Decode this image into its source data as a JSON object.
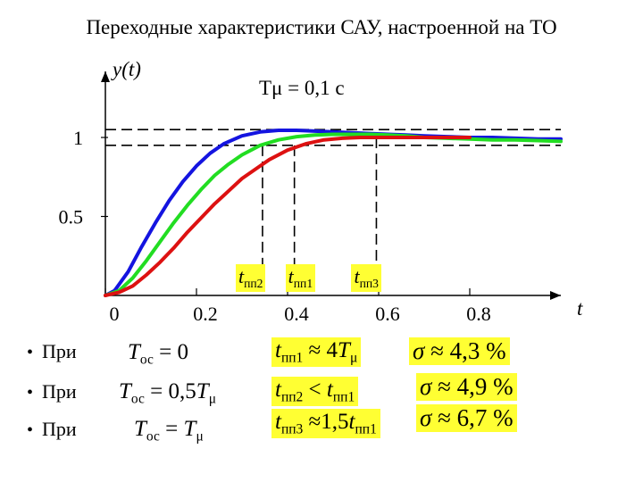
{
  "title": "Переходные характеристики САУ, настроенной на ТО",
  "chart_data": {
    "type": "line",
    "ylabel": "y(t)",
    "xlabel": "t",
    "xlim": [
      0,
      1.0
    ],
    "ylim": [
      0,
      1.2
    ],
    "x_ticks": [
      0,
      0.2,
      0.4,
      0.6,
      0.8
    ],
    "x_tick_labels": [
      "0",
      "0.2",
      "0.4",
      "0.6",
      "0.8"
    ],
    "y_ticks": [
      0.5,
      1
    ],
    "y_tick_labels": [
      "0.5",
      "1"
    ],
    "grid": false,
    "annotation": "Tμ = 0,1 c",
    "band": [
      0.95,
      1.05
    ],
    "series": [
      {
        "color": "#1414e0",
        "x": [
          0,
          0.02,
          0.05,
          0.08,
          0.11,
          0.14,
          0.17,
          0.2,
          0.23,
          0.26,
          0.3,
          0.34,
          0.38,
          0.42,
          0.46,
          0.5,
          0.54,
          0.58,
          0.62,
          0.66,
          0.7,
          0.75,
          0.8,
          0.85,
          0.9,
          0.95,
          1.0
        ],
        "values": [
          0,
          0.03,
          0.15,
          0.31,
          0.46,
          0.6,
          0.72,
          0.82,
          0.9,
          0.96,
          1.01,
          1.035,
          1.045,
          1.045,
          1.04,
          1.035,
          1.03,
          1.025,
          1.02,
          1.015,
          1.01,
          1.005,
          1.0,
          1.0,
          0.995,
          0.99,
          0.99
        ]
      },
      {
        "color": "#22dd22",
        "x": [
          0,
          0.03,
          0.06,
          0.09,
          0.12,
          0.15,
          0.18,
          0.21,
          0.24,
          0.27,
          0.3,
          0.34,
          0.38,
          0.42,
          0.46,
          0.5,
          0.54,
          0.58,
          0.62,
          0.66,
          0.7,
          0.75,
          0.8,
          0.85,
          0.9,
          0.95,
          1.0
        ],
        "values": [
          0,
          0.03,
          0.11,
          0.22,
          0.34,
          0.46,
          0.57,
          0.67,
          0.76,
          0.83,
          0.89,
          0.95,
          0.985,
          1.005,
          1.015,
          1.02,
          1.02,
          1.02,
          1.015,
          1.01,
          1.0,
          0.995,
          0.99,
          0.985,
          0.985,
          0.98,
          0.975
        ]
      },
      {
        "color": "#dd1111",
        "x": [
          0,
          0.03,
          0.06,
          0.09,
          0.12,
          0.15,
          0.18,
          0.21,
          0.24,
          0.27,
          0.3,
          0.33,
          0.36,
          0.4,
          0.44,
          0.48,
          0.52,
          0.56,
          0.6,
          0.64,
          0.68,
          0.72,
          0.76,
          0.8
        ],
        "values": [
          0,
          0.02,
          0.06,
          0.13,
          0.21,
          0.3,
          0.4,
          0.49,
          0.58,
          0.66,
          0.74,
          0.8,
          0.86,
          0.92,
          0.96,
          0.985,
          0.995,
          1.0,
          1.0,
          1.0,
          1.0,
          1.0,
          1.0,
          1.0
        ]
      }
    ],
    "markers": [
      {
        "id": "tpp2",
        "x": 0.345,
        "y": 0.95,
        "label_base": "t",
        "label_sub": "пп2"
      },
      {
        "id": "tpp1",
        "x": 0.415,
        "y": 0.95,
        "label_base": "t",
        "label_sub": "пп1"
      },
      {
        "id": "tpp3",
        "x": 0.595,
        "y": 1.0,
        "label_base": "t",
        "label_sub": "пп3"
      }
    ]
  },
  "cases": [
    {
      "bullet": "•",
      "label": "При",
      "condition": {
        "base": "T",
        "sub": "ос",
        "rest": " = 0"
      },
      "time": {
        "base": "t",
        "sub": "пп1",
        "rest": " ≈ 4",
        "var": "T",
        "var_sub": "μ",
        "tail": ""
      },
      "overshoot": {
        "symbol": "σ",
        "value": "≈ 4,3 %"
      }
    },
    {
      "bullet": "•",
      "label": "При",
      "condition": {
        "base": "T",
        "sub": "ос",
        "rest": " = 0,5",
        "var": "T",
        "var_sub": "μ"
      },
      "time": {
        "base": "t",
        "sub": "пп2",
        "rest": " < ",
        "var": "t",
        "var_sub": "пп1",
        "tail": ""
      },
      "overshoot": {
        "symbol": "σ",
        "value": "≈ 4,9 %"
      }
    },
    {
      "bullet": "•",
      "label": "При",
      "condition": {
        "base": "T",
        "sub": "ос",
        "rest": " = ",
        "var": "T",
        "var_sub": "μ"
      },
      "time": {
        "base": "t",
        "sub": "пп3",
        "rest": " ≈1,5",
        "var": "t",
        "var_sub": "пп1",
        "tail": ""
      },
      "overshoot": {
        "symbol": "σ",
        "value": "≈ 6,7 %"
      }
    }
  ]
}
